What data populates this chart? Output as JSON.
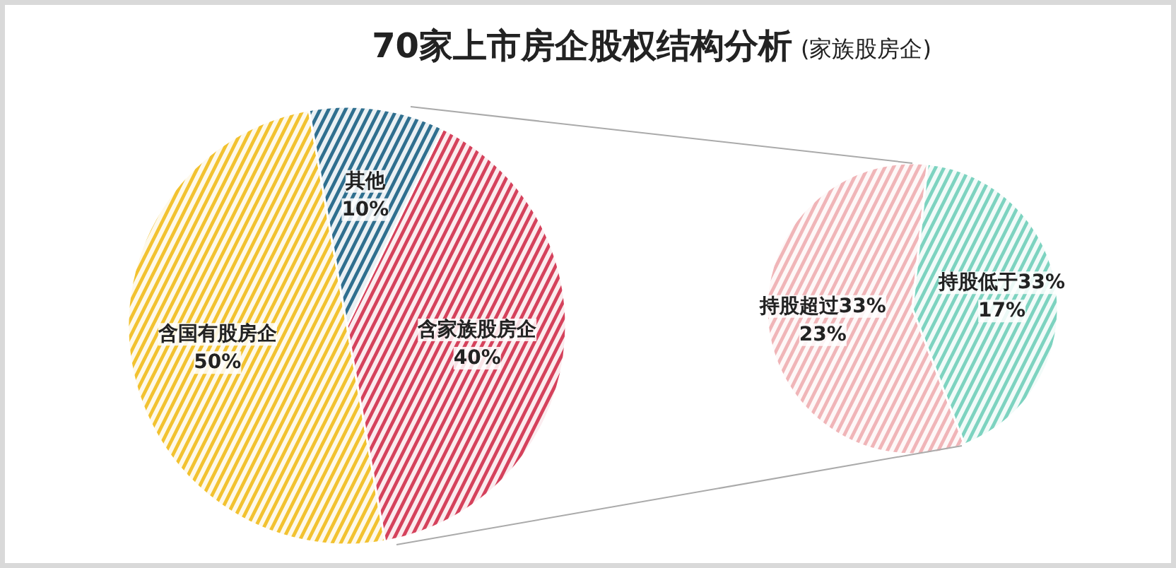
{
  "chart_data": [
    {
      "type": "pie",
      "title": "70家上市房企股权结构分析",
      "subtitle": "(家族股房企)",
      "categories": [
        "含国有股房企",
        "含家族股房企",
        "其他"
      ],
      "values": [
        50,
        40,
        10
      ],
      "colors": [
        "#f2c230",
        "#d5425c",
        "#2f6f8f"
      ],
      "value_labels": [
        "50%",
        "40%",
        "10%"
      ]
    },
    {
      "type": "pie",
      "categories": [
        "持股超过33%",
        "持股低于33%"
      ],
      "values": [
        23,
        17
      ],
      "colors": [
        "#f0b5b8",
        "#7dd3c0"
      ],
      "value_labels": [
        "23%",
        "17%"
      ]
    }
  ]
}
